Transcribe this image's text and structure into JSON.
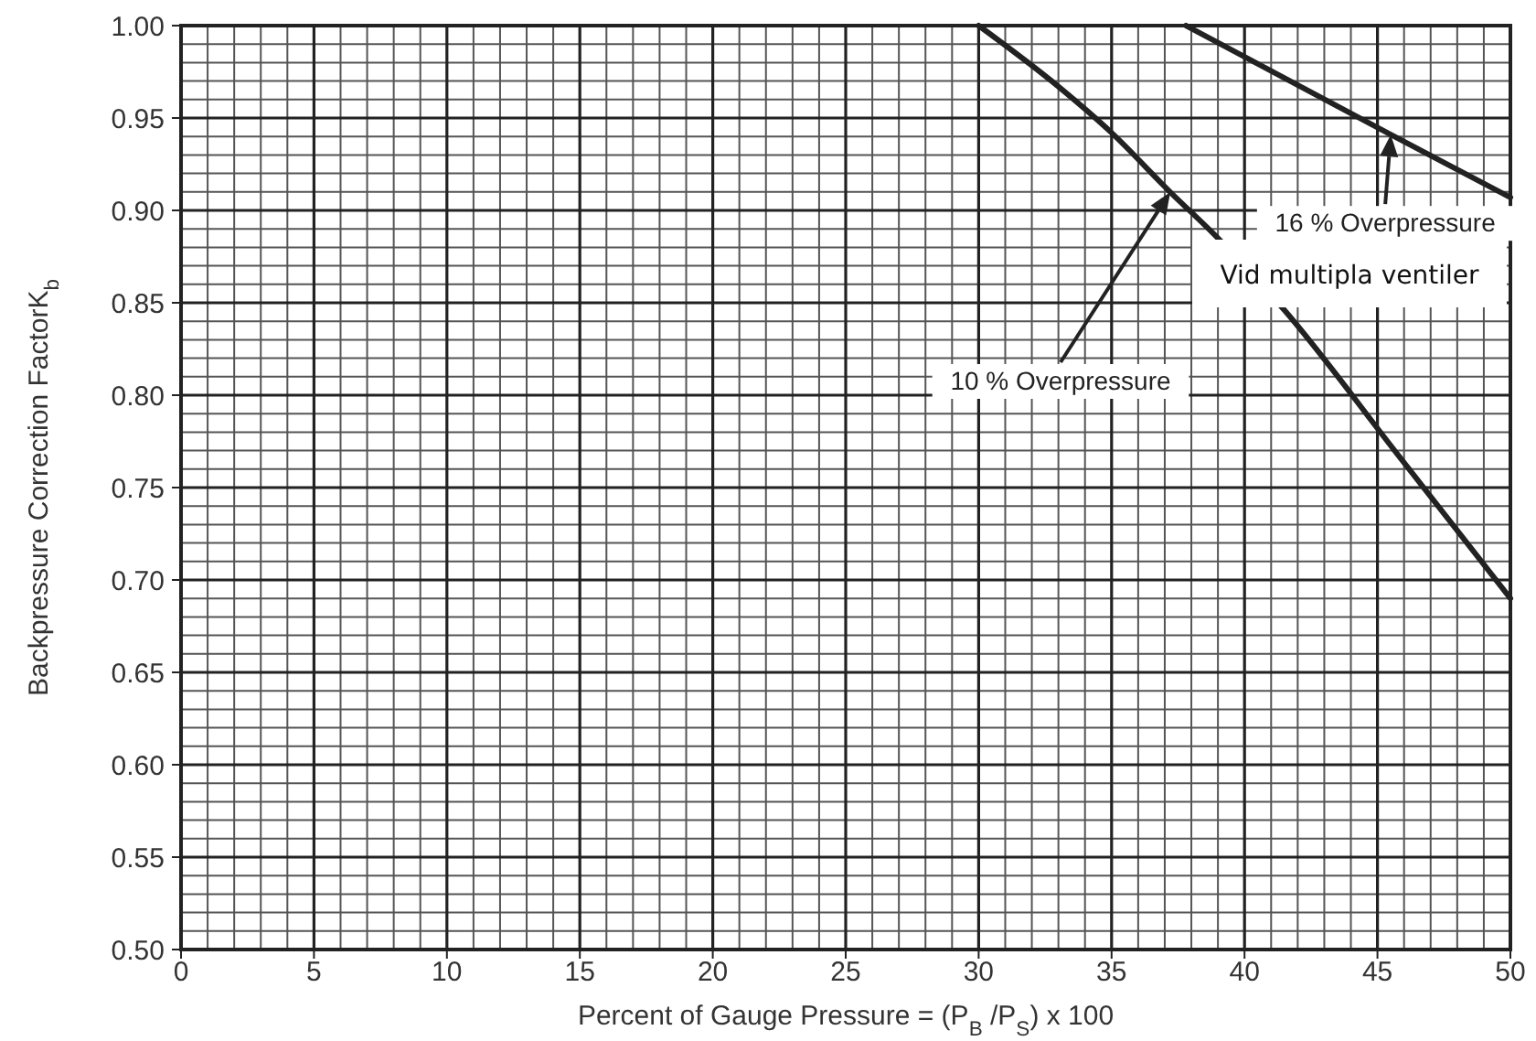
{
  "chart_data": {
    "type": "line",
    "xlabel": "Percent of Gauge Pressure = (P$_{B}$ /P$_{S}$) x 100",
    "ylabel": "Backpressure Correction FactorK$_{b}$",
    "series": [
      {
        "color": "#222222",
        "x": [
          30,
          33,
          35,
          37.2,
          39,
          41.5,
          45.7,
          50
        ],
        "values": [
          1.0,
          0.967,
          0.942,
          0.91,
          0.885,
          0.846,
          0.769,
          0.69
        ]
      },
      {
        "color": "#222222",
        "x": [
          37.8,
          45.5,
          50
        ],
        "values": [
          1.0,
          0.941,
          0.907
        ]
      }
    ],
    "xlim": [
      0,
      50
    ],
    "xticks": [
      0,
      5,
      10,
      15,
      20,
      25,
      30,
      35,
      40,
      45,
      50
    ],
    "ylim": [
      0.5,
      1.0
    ],
    "yticks": [
      {
        "value": 0.5,
        "label": "0.50"
      },
      {
        "value": 0.55,
        "label": "0.55"
      },
      {
        "value": 0.6,
        "label": "0.60"
      },
      {
        "value": 0.65,
        "label": "0.65"
      },
      {
        "value": 0.7,
        "label": "0.70"
      },
      {
        "value": 0.75,
        "label": "0.75"
      },
      {
        "value": 0.8,
        "label": "0.80"
      },
      {
        "value": 0.85,
        "label": "0.85"
      },
      {
        "value": 0.9,
        "label": "0.90"
      },
      {
        "value": 0.95,
        "label": "0.95"
      },
      {
        "value": 1.0,
        "label": "1.00"
      }
    ],
    "grid": true,
    "marker": "none",
    "line_style": "solid",
    "annotations": [
      "10 % Overpressure",
      {
        "text": "16 % Overpressure",
        "x": 45.5,
        "y": 0.941
      },
      "Vid multipla ventiler"
    ]
  }
}
